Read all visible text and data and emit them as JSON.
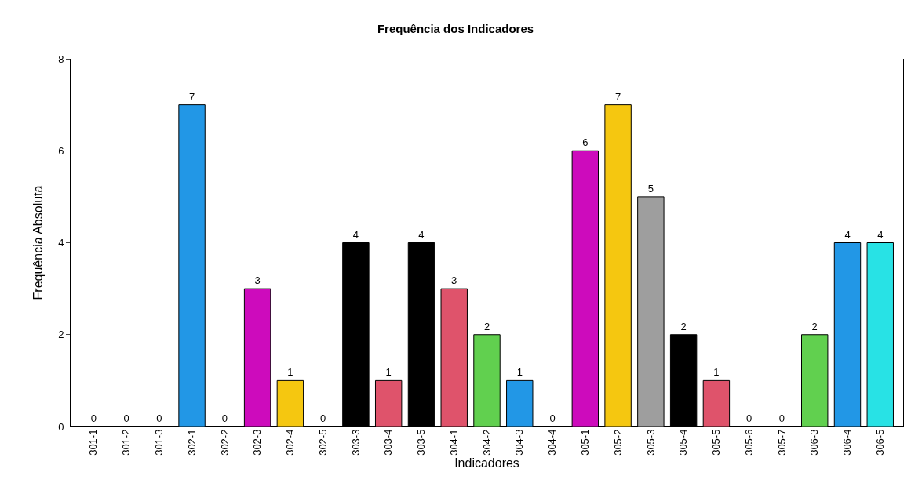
{
  "chart_data": {
    "type": "bar",
    "title": "Frequência dos Indicadores",
    "xlabel": "Indicadores",
    "ylabel": "Frequência Absoluta",
    "categories": [
      "301-1",
      "301-2",
      "301-3",
      "302-1",
      "302-2",
      "302-3",
      "302-4",
      "302-5",
      "303-3",
      "303-4",
      "303-5",
      "304-1",
      "304-2",
      "304-3",
      "304-4",
      "305-1",
      "305-2",
      "305-3",
      "305-4",
      "305-5",
      "305-6",
      "305-7",
      "306-3",
      "306-4",
      "306-5"
    ],
    "values": [
      0,
      0,
      0,
      7,
      0,
      3,
      1,
      0,
      4,
      1,
      4,
      3,
      2,
      1,
      0,
      6,
      7,
      5,
      2,
      1,
      0,
      0,
      2,
      4,
      4
    ],
    "colors": [
      "#000000",
      "#000000",
      "#000000",
      "#2297e6",
      "#000000",
      "#cd0bbc",
      "#f5c710",
      "#000000",
      "#000000",
      "#df536b",
      "#000000",
      "#df536b",
      "#61d04f",
      "#2297e6",
      "#000000",
      "#cd0bbc",
      "#f5c710",
      "#9e9e9e",
      "#000000",
      "#df536b",
      "#000000",
      "#000000",
      "#61d04f",
      "#2297e6",
      "#28e2e5"
    ],
    "ylim": [
      0,
      8
    ],
    "yticks": [
      0,
      2,
      4,
      6,
      8
    ],
    "data_labels": true
  }
}
